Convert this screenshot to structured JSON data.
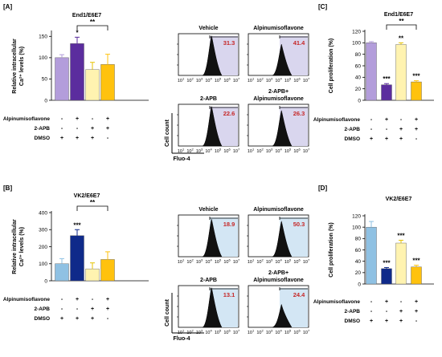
{
  "figure": {
    "panel_labels": [
      "[A]",
      "[B]",
      "[C]",
      "[D]"
    ],
    "cond_labels": [
      "Alpinumisoflavone",
      "2-APB",
      "DMSO"
    ],
    "cond_signs": [
      [
        "-",
        "+",
        "-",
        "+"
      ],
      [
        "-",
        "-",
        "+",
        "+"
      ],
      [
        "+",
        "+",
        "+",
        "-"
      ]
    ],
    "flow": {
      "ylabel": "Cell count",
      "xlabel": "Fluo-4",
      "log_ticks": [
        "10",
        "10",
        "10",
        "10",
        "10",
        "10",
        "10"
      ],
      "log_exps": [
        "1",
        "2",
        "3",
        "4",
        "5",
        "6",
        "7"
      ]
    }
  },
  "chart_data": [
    {
      "type": "bar",
      "panel": "[A]",
      "title": "End1/E6E7",
      "ylabel": "Relative intracellular Ca²⁺ levels (%)",
      "ylim": [
        0,
        160
      ],
      "yticks": [
        0,
        50,
        100,
        150
      ],
      "values": [
        100,
        133,
        72,
        84
      ],
      "errors": [
        7,
        15,
        17,
        24
      ],
      "colors": [
        "#b39ddb",
        "#5b2d9e",
        "#fff3b0",
        "#ffc20e"
      ],
      "stars": [
        "",
        "*",
        "",
        ""
      ],
      "brackets": [
        {
          "from": 1,
          "to": 3,
          "label": "**"
        }
      ]
    },
    {
      "type": "bar",
      "panel": "[B]",
      "title": "VK2/E6E7",
      "ylabel": "Relative intracellular Ca²⁺ levels (%)",
      "ylim": [
        0,
        400
      ],
      "yticks": [
        0,
        100,
        200,
        300,
        400
      ],
      "values": [
        100,
        265,
        70,
        125
      ],
      "errors": [
        30,
        35,
        35,
        45
      ],
      "colors": [
        "#8fc1e3",
        "#0f2a8a",
        "#fff3b0",
        "#ffc20e"
      ],
      "stars": [
        "",
        "***",
        "",
        ""
      ],
      "brackets": [
        {
          "from": 1,
          "to": 3,
          "label": "**"
        }
      ]
    },
    {
      "type": "bar",
      "panel": "[C]",
      "title": "End1/E6E7",
      "ylabel": "Cell proliferation (%)",
      "ylim": [
        0,
        120
      ],
      "yticks": [
        0,
        20,
        40,
        60,
        80,
        100,
        120
      ],
      "values": [
        100,
        27,
        97,
        32
      ],
      "errors": [
        2,
        2,
        3,
        2
      ],
      "colors": [
        "#b39ddb",
        "#5b2d9e",
        "#fff3b0",
        "#ffc20e"
      ],
      "stars": [
        "",
        "***",
        "**",
        "***"
      ],
      "brackets": [
        {
          "from": 1,
          "to": 3,
          "label": "**"
        }
      ]
    },
    {
      "type": "bar",
      "panel": "[D]",
      "title": "VK2/E6E7",
      "ylabel": "Cell proliferation (%)",
      "ylim": [
        0,
        120
      ],
      "yticks": [
        0,
        20,
        40,
        60,
        80,
        100,
        120
      ],
      "values": [
        100,
        27,
        72,
        30
      ],
      "errors": [
        10,
        2,
        5,
        3
      ],
      "colors": [
        "#8fc1e3",
        "#0f2a8a",
        "#fff3b0",
        "#ffc20e"
      ],
      "stars": [
        "",
        "***",
        "***",
        "***"
      ],
      "brackets": []
    },
    {
      "type": "histogram",
      "panel": "[A]",
      "label": "Vehicle",
      "gate_percent": "31.3",
      "gate_fraction": 0.313,
      "gate_color": "#d9d6ee",
      "peak_level": 0.95
    },
    {
      "type": "histogram",
      "panel": "[A]",
      "label": "Alpinumisoflavone",
      "gate_percent": "41.4",
      "gate_fraction": 0.414,
      "gate_color": "#d9d6ee",
      "peak_level": 0.75
    },
    {
      "type": "histogram",
      "panel": "[A]",
      "label": "2-APB",
      "gate_percent": "22.6",
      "gate_fraction": 0.226,
      "gate_color": "#d9d6ee",
      "peak_level": 0.95
    },
    {
      "type": "histogram",
      "panel": "[A]",
      "label": "2-APB+ Alpinumisoflavone",
      "gate_percent": "26.3",
      "gate_fraction": 0.263,
      "gate_color": "#d9d6ee",
      "peak_level": 0.85
    },
    {
      "type": "histogram",
      "panel": "[B]",
      "label": "Vehicle",
      "gate_percent": "18.9",
      "gate_fraction": 0.189,
      "gate_color": "#d3e6f4",
      "peak_level": 0.9
    },
    {
      "type": "histogram",
      "panel": "[B]",
      "label": "Alpinumisoflavone",
      "gate_percent": "50.3",
      "gate_fraction": 0.503,
      "gate_color": "#d3e6f4",
      "peak_level": 0.85
    },
    {
      "type": "histogram",
      "panel": "[B]",
      "label": "2-APB",
      "gate_percent": "13.1",
      "gate_fraction": 0.131,
      "gate_color": "#d3e6f4",
      "peak_level": 0.95
    },
    {
      "type": "histogram",
      "panel": "[B]",
      "label": "2-APB+ Alpinumisoflavone",
      "gate_percent": "24.4",
      "gate_fraction": 0.244,
      "gate_color": "#d3e6f4",
      "peak_level": 0.55
    }
  ]
}
